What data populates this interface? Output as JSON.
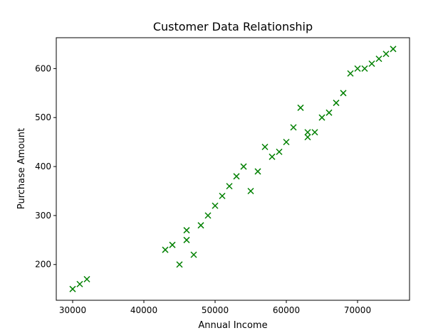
{
  "chart_data": {
    "type": "scatter",
    "title": "Customer Data Relationship",
    "xlabel": "Annual Income",
    "ylabel": "Purchase Amount",
    "xlim": [
      27700,
      77300
    ],
    "ylim": [
      127,
      663
    ],
    "xticks": [
      30000,
      40000,
      50000,
      60000,
      70000
    ],
    "yticks": [
      200,
      300,
      400,
      500,
      600
    ],
    "grid": false,
    "marker": "x",
    "color": "#008000",
    "points": [
      {
        "x": 30000,
        "y": 150
      },
      {
        "x": 31000,
        "y": 160
      },
      {
        "x": 32000,
        "y": 170
      },
      {
        "x": 43000,
        "y": 230
      },
      {
        "x": 44000,
        "y": 240
      },
      {
        "x": 45000,
        "y": 200
      },
      {
        "x": 46000,
        "y": 270
      },
      {
        "x": 46000,
        "y": 250
      },
      {
        "x": 47000,
        "y": 220
      },
      {
        "x": 48000,
        "y": 280
      },
      {
        "x": 49000,
        "y": 300
      },
      {
        "x": 50000,
        "y": 320
      },
      {
        "x": 51000,
        "y": 340
      },
      {
        "x": 52000,
        "y": 360
      },
      {
        "x": 53000,
        "y": 380
      },
      {
        "x": 54000,
        "y": 400
      },
      {
        "x": 55000,
        "y": 350
      },
      {
        "x": 56000,
        "y": 390
      },
      {
        "x": 57000,
        "y": 440
      },
      {
        "x": 58000,
        "y": 420
      },
      {
        "x": 59000,
        "y": 430
      },
      {
        "x": 60000,
        "y": 450
      },
      {
        "x": 61000,
        "y": 480
      },
      {
        "x": 62000,
        "y": 520
      },
      {
        "x": 63000,
        "y": 470
      },
      {
        "x": 63000,
        "y": 460
      },
      {
        "x": 64000,
        "y": 470
      },
      {
        "x": 65000,
        "y": 500
      },
      {
        "x": 66000,
        "y": 510
      },
      {
        "x": 67000,
        "y": 530
      },
      {
        "x": 68000,
        "y": 550
      },
      {
        "x": 69000,
        "y": 590
      },
      {
        "x": 70000,
        "y": 600
      },
      {
        "x": 71000,
        "y": 600
      },
      {
        "x": 72000,
        "y": 610
      },
      {
        "x": 73000,
        "y": 620
      },
      {
        "x": 74000,
        "y": 630
      },
      {
        "x": 75000,
        "y": 640
      }
    ]
  }
}
